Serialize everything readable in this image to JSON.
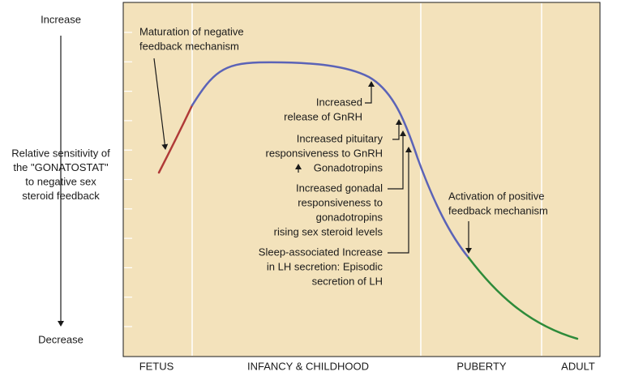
{
  "y_axis": {
    "top_label": "Increase",
    "bottom_label": "Decrease",
    "title_lines": [
      "Relative sensitivity of",
      "the \"GONATOSTAT\"",
      "to negative sex",
      "steroid feedback"
    ]
  },
  "x_axis": {
    "labels": [
      "FETUS",
      "INFANCY & CHILDHOOD",
      "PUBERTY",
      "ADULT"
    ]
  },
  "annotations": [
    {
      "lines": [
        "Maturation of negative",
        "feedback mechanism"
      ]
    },
    {
      "lines": [
        "Increased",
        "release of GnRH"
      ]
    },
    {
      "lines": [
        "Increased pituitary",
        "responsiveness to GnRH",
        "Gonadotropins"
      ]
    },
    {
      "lines": [
        "Increased gonadal",
        "responsiveness to",
        "gonadotropins",
        "rising sex steroid levels"
      ]
    },
    {
      "lines": [
        "Sleep-associated Increase",
        "in LH secretion: Episodic",
        "secretion of LH"
      ]
    },
    {
      "lines": [
        "Activation of positive",
        "feedback mechanism"
      ]
    }
  ]
}
